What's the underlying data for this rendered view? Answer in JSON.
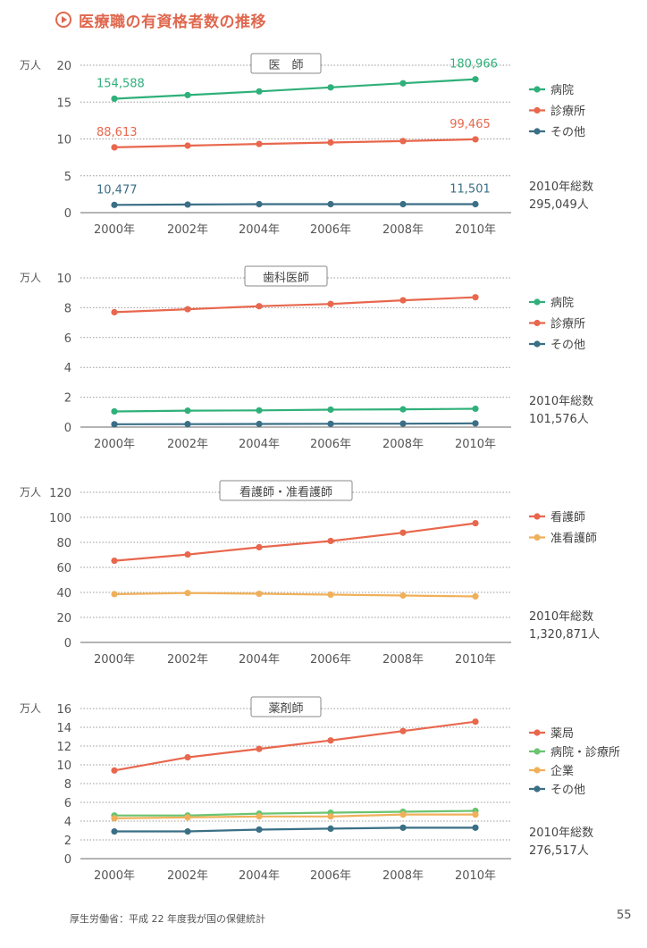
{
  "page": {
    "title": "医療職の有資格者数の推移",
    "source": "厚生労働省：平成 22 年度我が国の保健統計",
    "page_number": "55"
  },
  "colors": {
    "green": "#2fb07a",
    "orange": "#e8674d",
    "blue": "#3a6f86",
    "yellow": "#f0b05a",
    "lightgreen": "#6bc46f"
  },
  "chart_data": [
    {
      "type": "line",
      "title": "医　師",
      "unit": "万人",
      "categories": [
        "2000年",
        "2002年",
        "2004年",
        "2006年",
        "2008年",
        "2010年"
      ],
      "ylim": [
        0,
        20
      ],
      "yticks": [
        "0",
        "5",
        "10",
        "15",
        "20"
      ],
      "series": [
        {
          "name": "病院",
          "color": "green",
          "values": [
            15.46,
            15.95,
            16.45,
            16.99,
            17.55,
            18.1
          ]
        },
        {
          "name": "診療所",
          "color": "orange",
          "values": [
            8.86,
            9.09,
            9.32,
            9.52,
            9.71,
            9.95
          ]
        },
        {
          "name": "その他",
          "color": "blue",
          "values": [
            1.05,
            1.1,
            1.15,
            1.15,
            1.15,
            1.15
          ]
        }
      ],
      "annotations": [
        {
          "series": 0,
          "index": 0,
          "text": "154,588"
        },
        {
          "series": 0,
          "index": 5,
          "text": "180,966"
        },
        {
          "series": 1,
          "index": 0,
          "text": "88,613"
        },
        {
          "series": 1,
          "index": 5,
          "text": "99,465"
        },
        {
          "series": 2,
          "index": 0,
          "text": "10,477"
        },
        {
          "series": 2,
          "index": 5,
          "text": "11,501"
        }
      ],
      "total_label": "2010年総数",
      "total_value": "295,049人"
    },
    {
      "type": "line",
      "title": "歯科医師",
      "unit": "万人",
      "categories": [
        "2000年",
        "2002年",
        "2004年",
        "2006年",
        "2008年",
        "2010年"
      ],
      "ylim": [
        0,
        10
      ],
      "yticks": [
        "0",
        "2",
        "4",
        "6",
        "8",
        "10"
      ],
      "series": [
        {
          "name": "病院",
          "color": "green",
          "values": [
            1.05,
            1.1,
            1.12,
            1.17,
            1.19,
            1.23
          ]
        },
        {
          "name": "診療所",
          "color": "orange",
          "values": [
            7.7,
            7.9,
            8.1,
            8.25,
            8.5,
            8.7
          ]
        },
        {
          "name": "その他",
          "color": "blue",
          "values": [
            0.19,
            0.2,
            0.21,
            0.22,
            0.23,
            0.25
          ]
        }
      ],
      "annotations": [],
      "total_label": "2010年総数",
      "total_value": "101,576人"
    },
    {
      "type": "line",
      "title": "看護師・准看護師",
      "unit": "万人",
      "categories": [
        "2000年",
        "2002年",
        "2004年",
        "2006年",
        "2008年",
        "2010年"
      ],
      "ylim": [
        0,
        120
      ],
      "yticks": [
        "0",
        "20",
        "40",
        "60",
        "80",
        "100",
        "120"
      ],
      "series": [
        {
          "name": "看護師",
          "color": "orange",
          "values": [
            65.3,
            70.3,
            76.1,
            81.1,
            87.7,
            95.3
          ]
        },
        {
          "name": "准看護師",
          "color": "yellow",
          "values": [
            38.6,
            39.5,
            38.9,
            38.2,
            37.5,
            36.8
          ]
        }
      ],
      "annotations": [],
      "total_label": "2010年総数",
      "total_value": "1,320,871人"
    },
    {
      "type": "line",
      "title": "薬剤師",
      "unit": "万人",
      "categories": [
        "2000年",
        "2002年",
        "2004年",
        "2006年",
        "2008年",
        "2010年"
      ],
      "ylim": [
        0,
        16
      ],
      "yticks": [
        "0",
        "2",
        "4",
        "6",
        "8",
        "10",
        "12",
        "14",
        "16"
      ],
      "series": [
        {
          "name": "薬局",
          "color": "orange",
          "values": [
            9.4,
            10.8,
            11.7,
            12.6,
            13.6,
            14.6
          ]
        },
        {
          "name": "病院・診療所",
          "color": "lightgreen",
          "values": [
            4.6,
            4.6,
            4.8,
            4.9,
            5.0,
            5.1
          ]
        },
        {
          "name": "企業",
          "color": "yellow",
          "values": [
            4.3,
            4.4,
            4.5,
            4.5,
            4.7,
            4.7
          ]
        },
        {
          "name": "その他",
          "color": "blue",
          "values": [
            2.9,
            2.9,
            3.1,
            3.2,
            3.3,
            3.3
          ]
        }
      ],
      "annotations": [],
      "total_label": "2010年総数",
      "total_value": "276,517人"
    }
  ]
}
